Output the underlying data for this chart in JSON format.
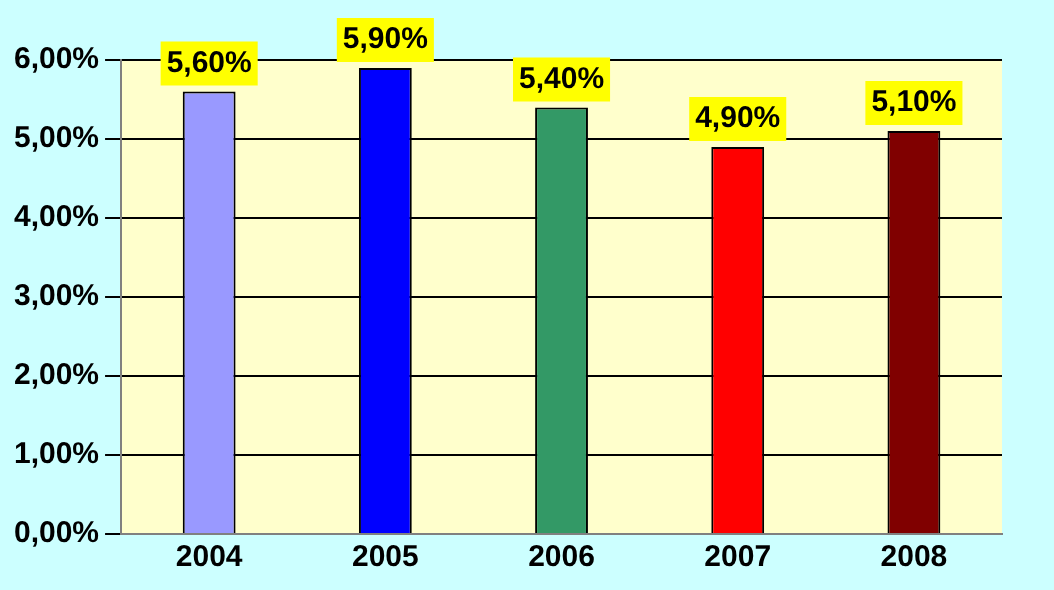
{
  "chart_data": {
    "type": "bar",
    "categories": [
      "2004",
      "2005",
      "2006",
      "2007",
      "2008"
    ],
    "values": [
      5.6,
      5.9,
      5.4,
      4.9,
      5.1
    ],
    "colors": [
      "#9999ff",
      "#0000ff",
      "#339966",
      "#ff0000",
      "#800000"
    ],
    "value_labels": [
      "5,60%",
      "5,90%",
      "5,40%",
      "4,90%",
      "5,10%"
    ],
    "ylim": [
      0,
      6
    ],
    "yticks": [
      {
        "value": 0,
        "label": "0,00%"
      },
      {
        "value": 1,
        "label": "1,00%"
      },
      {
        "value": 2,
        "label": "2,00%"
      },
      {
        "value": 3,
        "label": "3,00%"
      },
      {
        "value": 4,
        "label": "4,00%"
      },
      {
        "value": 5,
        "label": "5,00%"
      },
      {
        "value": 6,
        "label": "6,00%"
      }
    ],
    "grid": "y",
    "legend": false
  }
}
